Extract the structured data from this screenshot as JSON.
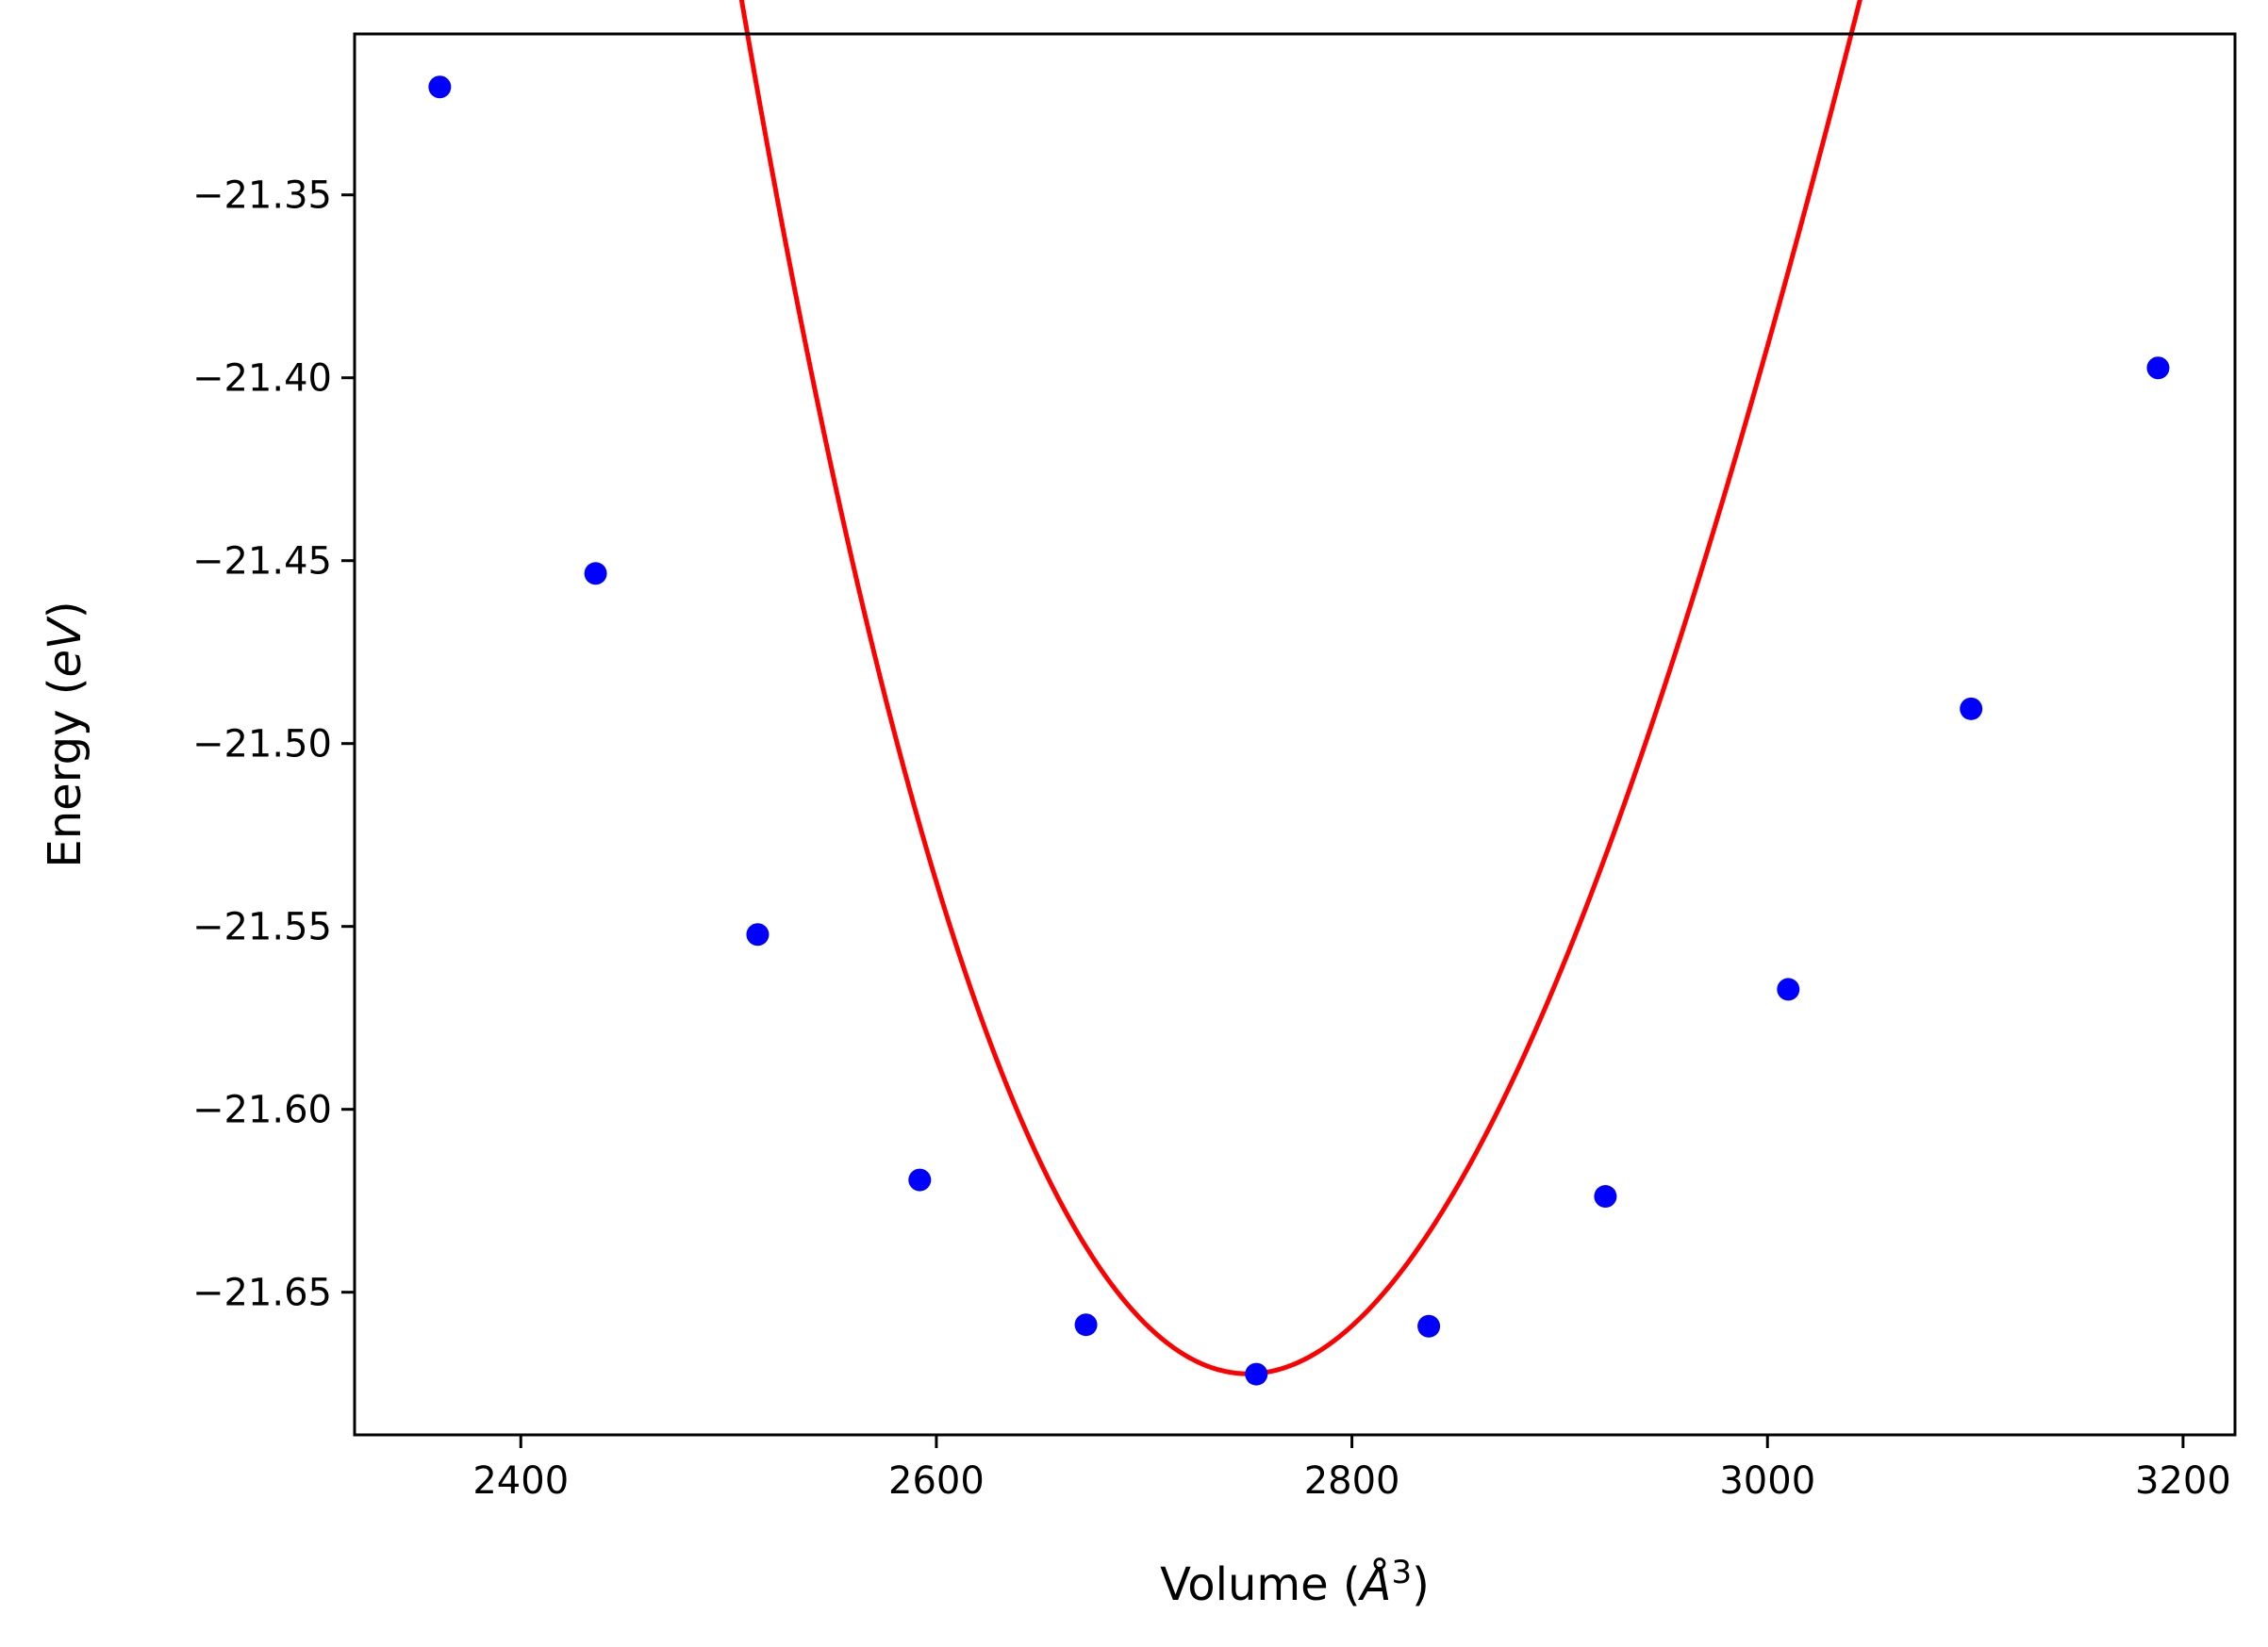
{
  "chart_data": {
    "type": "scatter",
    "xlabel_parts": [
      "Volume (",
      "Å",
      "3",
      ")"
    ],
    "ylabel_parts": [
      "Energy (",
      "eV",
      ")"
    ],
    "xlim": [
      2320,
      3225
    ],
    "ylim": [
      -21.689,
      -21.306
    ],
    "xticks": [
      2400,
      2600,
      2800,
      3000,
      3200
    ],
    "xtick_labels": [
      "2400",
      "2600",
      "2800",
      "3000",
      "3200"
    ],
    "yticks": [
      -21.35,
      -21.4,
      -21.45,
      -21.5,
      -21.55,
      -21.6,
      -21.65
    ],
    "ytick_labels": [
      "−21.35",
      "−21.40",
      "−21.45",
      "−21.50",
      "−21.55",
      "−21.60",
      "−21.65"
    ],
    "grid": false,
    "series": [
      {
        "kind": "points",
        "color": "#0000ff",
        "x": [
          2361,
          2436,
          2514,
          2592,
          2672,
          2754,
          2837,
          2922,
          3010,
          3098,
          3188
        ],
        "y": [
          -21.3205,
          -21.4535,
          -21.5522,
          -21.6193,
          -21.6589,
          -21.6724,
          -21.6593,
          -21.6238,
          -21.5672,
          -21.4905,
          -21.3973
        ]
      },
      {
        "kind": "fit-curve",
        "color": "#ff0000",
        "fit": {
          "x0": 2750,
          "e0": -21.6723,
          "b1": 5.42e-06,
          "b2": -3.7e-09
        },
        "x_range": [
          2361,
          3188
        ]
      }
    ]
  }
}
